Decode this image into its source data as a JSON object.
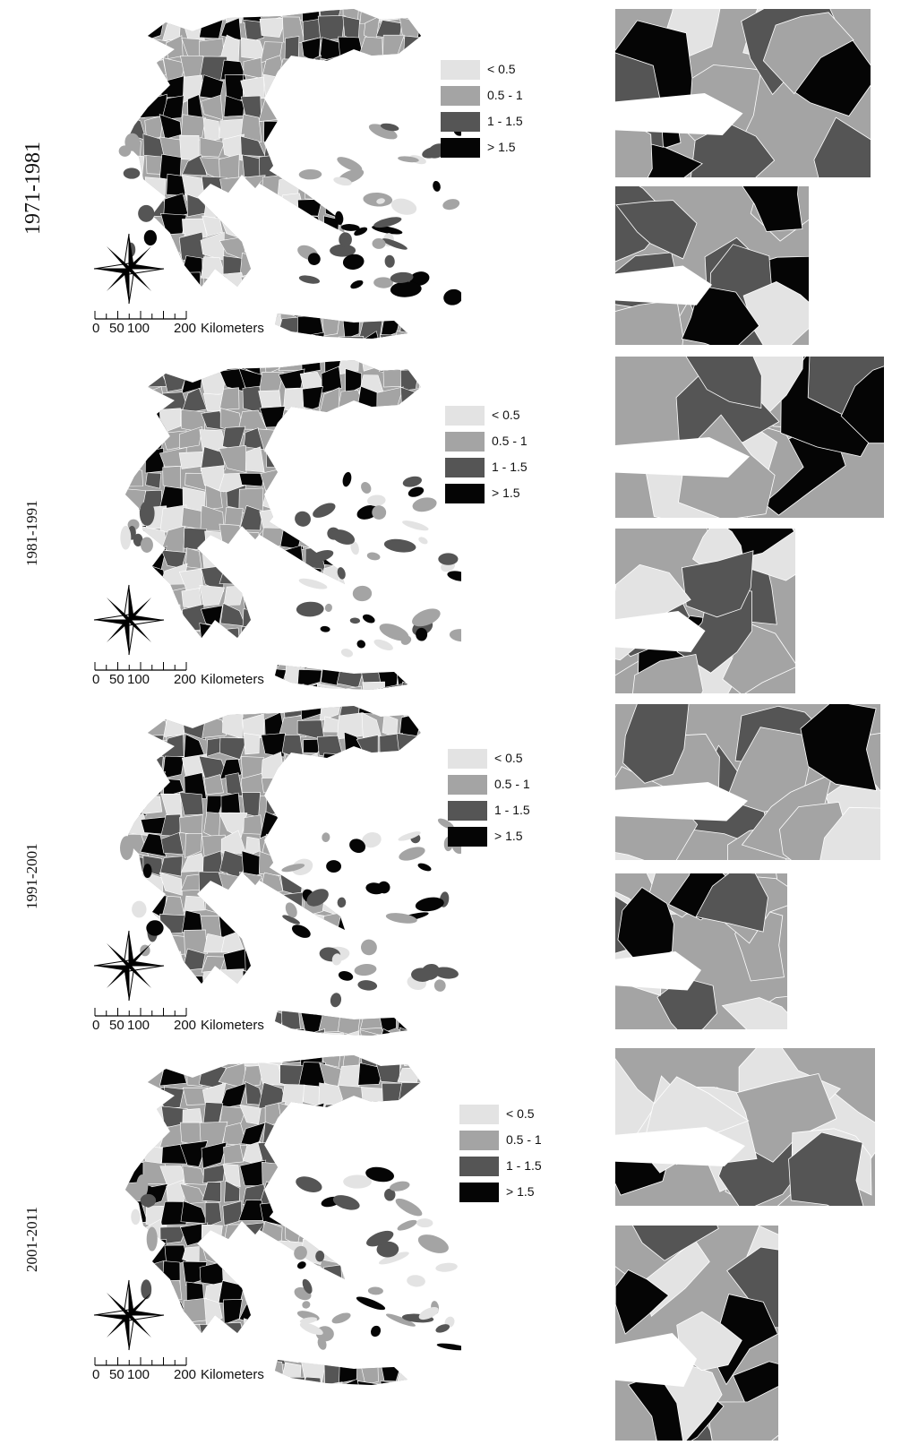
{
  "legend": {
    "classes": [
      {
        "label": "< 0.5",
        "color": "#e3e3e3"
      },
      {
        "label": "0.5 - 1",
        "color": "#a4a4a4"
      },
      {
        "label": "1 - 1.5",
        "color": "#555555"
      },
      {
        "label": "> 1.5",
        "color": "#050505"
      }
    ]
  },
  "scale": {
    "t0": "0",
    "t1": "50",
    "t2": "100",
    "t3": "200",
    "unit": "Kilometers"
  },
  "compass": {
    "n": "N",
    "s": "S",
    "e": "E",
    "w": "W"
  },
  "panels": [
    {
      "period": "1971-1981"
    },
    {
      "period": "1981-1991"
    },
    {
      "period": "1991-2001"
    },
    {
      "period": "2001-2011"
    }
  ],
  "colors": {
    "background": "#ffffff",
    "outline": "#ffffff"
  }
}
